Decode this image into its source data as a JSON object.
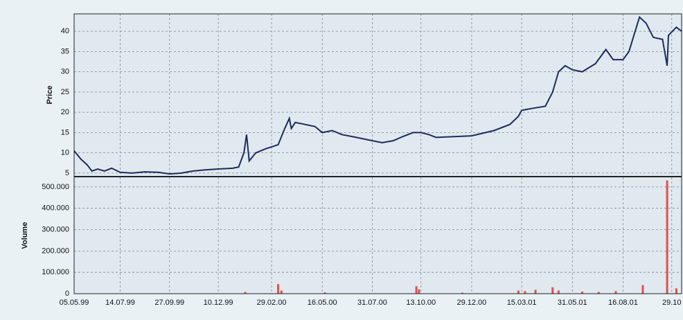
{
  "chart_data": [
    {
      "type": "line",
      "ylabel": "Price",
      "color": "#1c2a5c",
      "x": [
        "05.05.99",
        "15.05.99",
        "25.05.99",
        "01.06.99",
        "10.06.99",
        "20.06.99",
        "01.07.99",
        "14.07.99",
        "01.08.99",
        "20.08.99",
        "10.09.99",
        "27.09.99",
        "15.10.99",
        "01.11.99",
        "20.11.99",
        "10.12.99",
        "01.01.00",
        "10.01.00",
        "18.01.00",
        "22.01.00",
        "26.01.00",
        "05.02.00",
        "20.02.00",
        "10.03.00",
        "20.03.00",
        "27.03.00",
        "30.03.00",
        "05.04.00",
        "20.04.00",
        "05.05.00",
        "16.05.00",
        "31.05.00",
        "15.06.00",
        "01.07.00",
        "31.07.00",
        "15.08.00",
        "01.09.00",
        "15.09.00",
        "01.10.00",
        "13.10.00",
        "25.10.00",
        "05.11.00",
        "29.12.00",
        "01.02.01",
        "25.02.01",
        "10.03.01",
        "15.03.01",
        "01.04.01",
        "20.04.01",
        "01.05.01",
        "10.05.01",
        "20.05.01",
        "31.05.01",
        "15.06.01",
        "05.07.01",
        "21.07.01",
        "01.08.01",
        "16.08.01",
        "25.08.01",
        "10.09.01",
        "20.09.01",
        "01.10.01",
        "15.10.01",
        "22.10.01",
        "24.10.01",
        "05.11.01",
        "13.11.01"
      ],
      "values": [
        10.5,
        8.5,
        7,
        5.5,
        6,
        5.5,
        6.2,
        5.2,
        5,
        5.3,
        5.2,
        4.8,
        5,
        5.5,
        5.8,
        6,
        6.2,
        6.5,
        10,
        14.5,
        8,
        10,
        11,
        12,
        16,
        18.5,
        16,
        17.5,
        17,
        16.5,
        15,
        15.5,
        14.5,
        14,
        13,
        12.5,
        13,
        14,
        15,
        15,
        14.5,
        13.8,
        14.2,
        15.5,
        17,
        19,
        20.5,
        21,
        21.5,
        25,
        30,
        31.5,
        30.5,
        30,
        32,
        35.5,
        33,
        33,
        35,
        43.5,
        42,
        38.5,
        38,
        31.5,
        39,
        41,
        40
      ],
      "ylim": [
        4.3,
        44.3
      ],
      "yticks": [
        5,
        10,
        15,
        20,
        25,
        30,
        35,
        40
      ],
      "grid": true
    },
    {
      "type": "bar",
      "ylabel": "Volume",
      "color": "#e0504a",
      "x": [
        "20.01.00",
        "10.03.00",
        "15.03.00",
        "20.05.00",
        "06.10.00",
        "10.10.00",
        "15.12.00",
        "10.03.01",
        "20.03.01",
        "05.04.01",
        "01.05.01",
        "10.05.01",
        "15.06.01",
        "10.07.01",
        "05.08.01",
        "15.09.01",
        "22.10.01",
        "05.11.01"
      ],
      "values": [
        8000,
        45000,
        15000,
        6000,
        35000,
        20000,
        5000,
        15000,
        12000,
        18000,
        30000,
        15000,
        10000,
        8000,
        12000,
        40000,
        530000,
        25000
      ],
      "ylim": [
        0,
        545000
      ],
      "yticks": [
        0,
        {
          "value": 100000,
          "label": "100.000"
        },
        {
          "value": 200000,
          "label": "200.000"
        },
        {
          "value": 300000,
          "label": "300.000"
        },
        {
          "value": 400000,
          "label": "400.000"
        },
        {
          "value": 500000,
          "label": "500.000"
        }
      ],
      "xlim": [
        "05.05.99",
        "13.11.01"
      ],
      "xticks": [
        "05.05.99",
        "14.07.99",
        "27.09.99",
        "10.12.99",
        "29.02.00",
        "16.05.00",
        "31.07.00",
        "13.10.00",
        "29.12.00",
        "15.03.01",
        "31.05.01",
        "16.08.01",
        {
          "value": "29.10.01",
          "label": "29.10"
        }
      ],
      "grid": true
    }
  ]
}
